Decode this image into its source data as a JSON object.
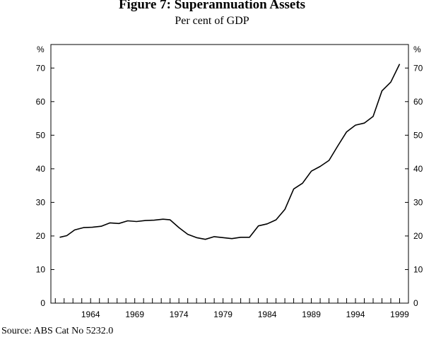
{
  "chart_data": {
    "type": "line",
    "title": "Figure 7: Superannuation Assets",
    "subtitle": "Per cent of GDP",
    "ylabel_left": "%",
    "ylabel_right": "%",
    "source": "Source: ABS Cat No 5232.0",
    "ylim": [
      0,
      77
    ],
    "xlim": [
      1959.5,
      2000.0
    ],
    "y_ticks": [
      0,
      10,
      20,
      30,
      40,
      50,
      60,
      70
    ],
    "x_tick_labels": [
      "1964",
      "1969",
      "1974",
      "1979",
      "1984",
      "1989",
      "1994",
      "1999"
    ],
    "x_tick_years": [
      1964,
      1969,
      1974,
      1979,
      1984,
      1989,
      1994,
      1999
    ],
    "series": [
      {
        "name": "Superannuation assets",
        "x": [
          1960.5,
          1961.3,
          1962.2,
          1963.2,
          1964.2,
          1965.2,
          1966.2,
          1967.2,
          1968.2,
          1969.2,
          1970.2,
          1971.2,
          1972.2,
          1973.0,
          1974.0,
          1975.0,
          1976.0,
          1977.0,
          1978.0,
          1979.0,
          1980.0,
          1981.0,
          1982.0,
          1983.0,
          1984.0,
          1985.0,
          1986.0,
          1987.0,
          1988.0,
          1989.0,
          1990.0,
          1991.0,
          1992.0,
          1993.0,
          1994.0,
          1995.0,
          1996.0,
          1997.0,
          1998.0,
          1999.0
        ],
        "values": [
          19.6,
          20.1,
          21.8,
          22.5,
          22.6,
          22.9,
          23.9,
          23.7,
          24.5,
          24.3,
          24.6,
          24.7,
          25.0,
          24.8,
          22.5,
          20.5,
          19.5,
          19.0,
          19.8,
          19.5,
          19.2,
          19.6,
          19.6,
          23.0,
          23.6,
          24.8,
          27.9,
          34.0,
          35.7,
          39.3,
          40.7,
          42.5,
          46.8,
          51.0,
          53.0,
          53.6,
          55.6,
          63.2,
          65.8,
          71.2
        ]
      }
    ]
  }
}
